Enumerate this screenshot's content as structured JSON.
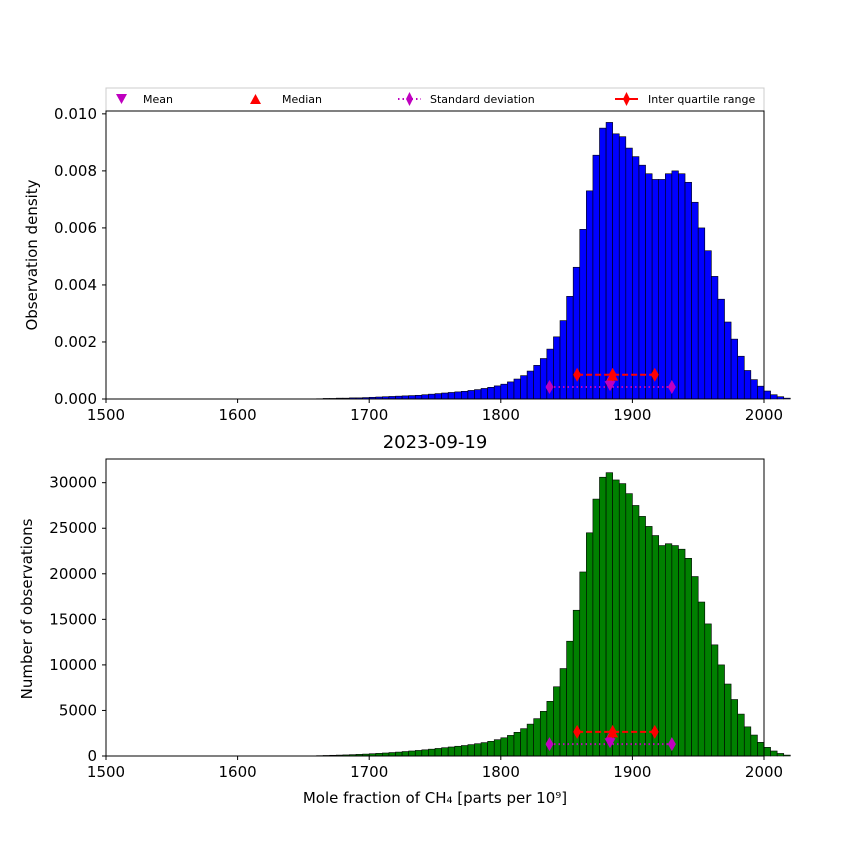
{
  "figure": {
    "title": "2023-09-19",
    "legend": {
      "placement": "top",
      "entries": [
        {
          "label": "Mean",
          "marker": "triangle-down",
          "color": "#bf00bf"
        },
        {
          "label": "Median",
          "marker": "triangle-up",
          "color": "#ff0000"
        },
        {
          "label": "Standard deviation",
          "marker": "diamond",
          "line": "dotted",
          "color": "#bf00bf"
        },
        {
          "label": "Inter quartile range",
          "marker": "diamond",
          "line": "solid",
          "color": "#ff0000"
        }
      ]
    }
  },
  "chart_data": [
    {
      "type": "bar",
      "ylabel": "Observation density",
      "xlim": [
        1500,
        2000
      ],
      "ylim": [
        0,
        0.0101
      ],
      "xticks": [
        "1500",
        "1600",
        "1700",
        "1800",
        "1900",
        "2000"
      ],
      "yticks": [
        "0.000",
        "0.002",
        "0.004",
        "0.006",
        "0.008",
        "0.010"
      ],
      "bar_color": "#0000ff",
      "bin_width": 5,
      "bin_start": 1660,
      "values": [
        1e-05,
        2e-05,
        2e-05,
        3e-05,
        3e-05,
        4e-05,
        4e-05,
        5e-05,
        6e-05,
        7e-05,
        8e-05,
        9e-05,
        0.0001,
        0.00011,
        0.00012,
        0.00013,
        0.00015,
        0.00017,
        0.00019,
        0.00021,
        0.00023,
        0.00025,
        0.00027,
        0.0003,
        0.00033,
        0.00037,
        0.00041,
        0.00046,
        0.00052,
        0.0006,
        0.0007,
        0.00082,
        0.00098,
        0.00118,
        0.00142,
        0.00175,
        0.00218,
        0.00275,
        0.0036,
        0.00462,
        0.00595,
        0.0073,
        0.00855,
        0.0095,
        0.0097,
        0.0093,
        0.0092,
        0.0088,
        0.0085,
        0.0082,
        0.0079,
        0.0077,
        0.0077,
        0.0079,
        0.008,
        0.0079,
        0.0076,
        0.0069,
        0.006,
        0.0052,
        0.0043,
        0.0035,
        0.0027,
        0.0021,
        0.0015,
        0.001,
        0.00068,
        0.00045,
        0.00028,
        0.00015,
        8e-05,
        3e-05
      ],
      "stats": {
        "mean": {
          "x": 1883,
          "y": 0.00045
        },
        "median": {
          "x": 1885,
          "y": 0.00082
        },
        "std": {
          "x": [
            1837,
            1930
          ],
          "y": 0.00042
        },
        "iqr": {
          "x": [
            1858,
            1917
          ],
          "y": 0.00085
        }
      }
    },
    {
      "type": "bar",
      "title": "2023-09-19",
      "xlabel": "Mole fraction of CH₄ [parts per 10⁹]",
      "ylabel": "Number of observations",
      "xlim": [
        1500,
        2000
      ],
      "ylim": [
        0,
        32600
      ],
      "xticks": [
        "1500",
        "1600",
        "1700",
        "1800",
        "1900",
        "2000"
      ],
      "yticks": [
        "0",
        "5000",
        "10000",
        "15000",
        "20000",
        "25000",
        "30000"
      ],
      "bar_color": "#008000",
      "bin_width": 5,
      "bin_start": 1660,
      "values": [
        40,
        60,
        80,
        100,
        120,
        150,
        180,
        210,
        250,
        290,
        330,
        380,
        430,
        490,
        550,
        610,
        680,
        750,
        830,
        910,
        990,
        1070,
        1150,
        1250,
        1350,
        1470,
        1610,
        1790,
        2000,
        2260,
        2600,
        3000,
        3500,
        4100,
        4900,
        6000,
        7600,
        9600,
        12600,
        16000,
        20200,
        24500,
        28200,
        30600,
        31100,
        30300,
        29900,
        28800,
        27500,
        26300,
        25200,
        24200,
        23100,
        23300,
        23100,
        22700,
        21700,
        19700,
        16900,
        14500,
        12200,
        10000,
        7900,
        6200,
        4600,
        3200,
        2300,
        1500,
        950,
        550,
        280,
        100
      ],
      "stats": {
        "mean": {
          "x": 1883,
          "y": 1400
        },
        "median": {
          "x": 1885,
          "y": 2600
        },
        "std": {
          "x": [
            1837,
            1930
          ],
          "y": 1300
        },
        "iqr": {
          "x": [
            1858,
            1917
          ],
          "y": 2650
        }
      }
    }
  ]
}
